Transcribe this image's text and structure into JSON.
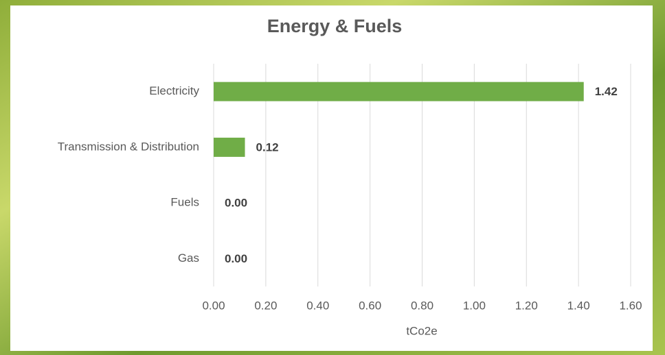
{
  "chart_data": {
    "type": "bar",
    "orientation": "horizontal",
    "title": "Energy & Fuels",
    "categories": [
      "Electricity",
      "Transmission & Distribution",
      "Fuels",
      "Gas"
    ],
    "values": [
      1.42,
      0.12,
      0,
      0
    ],
    "value_labels": [
      "1.42",
      "0.12",
      "0.00",
      "0.00"
    ],
    "color": "#70ad47",
    "xlabel": "tCo2e",
    "xlim": [
      0,
      1.6
    ],
    "xticks": [
      {
        "value": 0,
        "label": "0.00"
      },
      {
        "value": 0.2,
        "label": "0.20"
      },
      {
        "value": 0.4,
        "label": "0.40"
      },
      {
        "value": 0.6,
        "label": "0.60"
      },
      {
        "value": 0.8,
        "label": "0.80"
      },
      {
        "value": 1.0,
        "label": "1.00"
      },
      {
        "value": 1.2,
        "label": "1.20"
      },
      {
        "value": 1.4,
        "label": "1.40"
      },
      {
        "value": 1.6,
        "label": "1.60"
      }
    ],
    "grid": true
  }
}
